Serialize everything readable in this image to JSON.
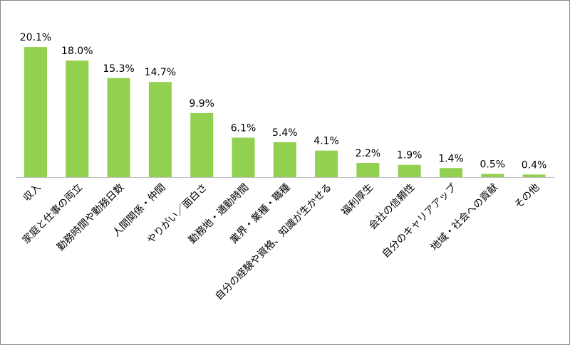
{
  "chart_data": {
    "type": "bar",
    "categories": [
      "収入",
      "家庭と仕事の両立",
      "勤務時間や勤務日数",
      "人間関係・仲間",
      "やりがい／面白さ",
      "勤務地・通勤時間",
      "業界・業種・職種",
      "自分の経験や資格、知識が生かせる",
      "福利厚生",
      "会社の信頼性",
      "自分のキャリアアップ",
      "地域・社会への貢献",
      "その他"
    ],
    "values": [
      20.1,
      18.0,
      15.3,
      14.7,
      9.9,
      6.1,
      5.4,
      4.1,
      2.2,
      1.9,
      1.4,
      0.5,
      0.4
    ],
    "value_labels": [
      "20.1%",
      "18.0%",
      "15.3%",
      "14.7%",
      "9.9%",
      "6.1%",
      "5.4%",
      "4.1%",
      "2.2%",
      "1.9%",
      "1.4%",
      "0.5%",
      "0.4%"
    ],
    "color": "#92d050"
  }
}
